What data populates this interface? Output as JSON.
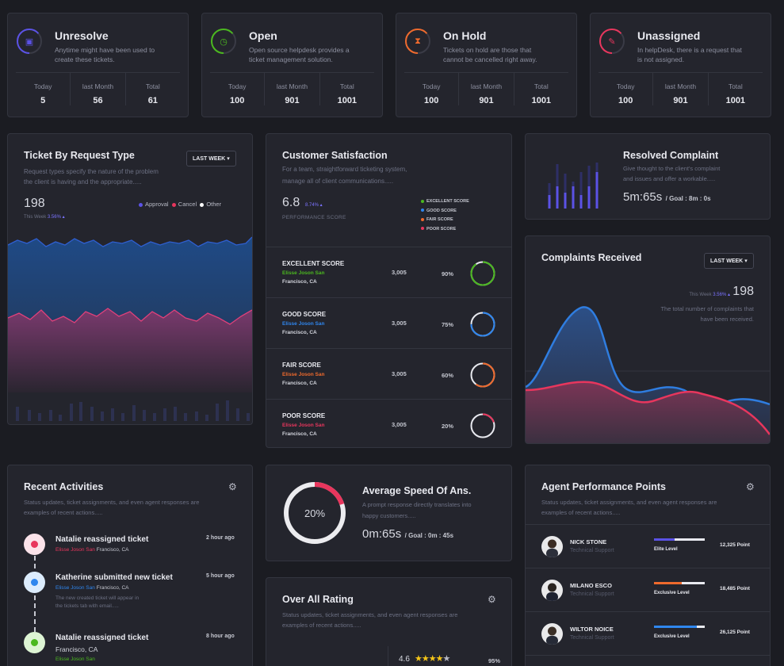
{
  "colors": {
    "purple": "#5b52e6",
    "green": "#4bb81f",
    "orange": "#ef6a2d",
    "red": "#e8365d",
    "blue": "#2f86ee"
  },
  "stat_cards": [
    {
      "title": "Unresolve",
      "desc1": "Anytime might have been used to",
      "desc2": "create these tickets.",
      "icon": "calendar-icon",
      "labels": [
        "Today",
        "last Month",
        "Total"
      ],
      "values": [
        "5",
        "56",
        "61"
      ]
    },
    {
      "title": "Open",
      "desc1": "Open source helpdesk provides a",
      "desc2": "ticket management solution.",
      "icon": "clock-icon",
      "labels": [
        "Today",
        "last Month",
        "Total"
      ],
      "values": [
        "100",
        "901",
        "1001"
      ]
    },
    {
      "title": "On Hold",
      "desc1": "Tickets on hold are those that",
      "desc2": "cannot be cancelled right away.",
      "icon": "hourglass-icon",
      "labels": [
        "Today",
        "last Month",
        "Total"
      ],
      "values": [
        "100",
        "901",
        "1001"
      ]
    },
    {
      "title": "Unassigned",
      "desc1": "In helpDesk, there is a request that",
      "desc2": "is not assigned.",
      "icon": "pencil-icon",
      "labels": [
        "Today",
        "last Month",
        "Total"
      ],
      "values": [
        "100",
        "901",
        "1001"
      ]
    }
  ],
  "ticket_request": {
    "title": "Ticket By Request Type",
    "desc1": "Request types specify the nature of the problem",
    "desc2": "the client is having and the appropriate.....",
    "dropdown": "LAST WEEK",
    "value": "198",
    "period": "This Week",
    "change": "3.56%",
    "legend": [
      "Approval",
      "Cancel",
      "Other"
    ]
  },
  "satisfaction": {
    "title": "Customer Satisfaction",
    "desc1": "For a team, straightforward ticketing system,",
    "desc2": "manage all of client communications.....",
    "score": "6.8",
    "change": "8.74%",
    "score_label": "PERFORMANCE SCORE",
    "legend": [
      "EXCELLENT SCORE",
      "GOOD SCORE",
      "FAIR SCORE",
      "POOR SCORE"
    ],
    "rows": [
      {
        "name": "EXCELLENT SCORE",
        "person": "Elisse Joson San",
        "location": "Francisco, CA",
        "count": "3,005",
        "percent": "90%",
        "fraction": 0.9,
        "color": "#4bb81f"
      },
      {
        "name": "GOOD SCORE",
        "person": "Elisse Joson San",
        "location": "Francisco, CA",
        "count": "3,005",
        "percent": "75%",
        "fraction": 0.75,
        "color": "#2f86ee"
      },
      {
        "name": "FAIR SCORE",
        "person": "Elisse Joson San",
        "location": "Francisco, CA",
        "count": "3,005",
        "percent": "60%",
        "fraction": 0.6,
        "color": "#ef6a2d"
      },
      {
        "name": "POOR SCORE",
        "person": "Elisse Joson San",
        "location": "Francisco, CA",
        "count": "3,005",
        "percent": "20%",
        "fraction": 0.2,
        "color": "#e8365d"
      }
    ]
  },
  "resolved": {
    "title": "Resolved Complaint",
    "desc1": "Give thought to the client's complaint",
    "desc2": "and issues and offer a workable.....",
    "time": "5m:65s",
    "goal": "/ Goal : 8m : 0s"
  },
  "complaints": {
    "title": "Complaints Received",
    "dropdown": "LAST WEEK",
    "period": "This Week",
    "change": "3.56%",
    "value": "198",
    "desc1": "The total number of complaints that",
    "desc2": "have been received."
  },
  "activities": {
    "title": "Recent Activities",
    "desc1": "Status updates, ticket assignments, and even agent responses are",
    "desc2": "examples of recent actions.....",
    "items": [
      {
        "title": "Natalie reassigned ticket",
        "person": "Elisse Joson San",
        "location": "Francisco, CA",
        "time": "2 hour ago"
      },
      {
        "title": "Katherine submitted new ticket",
        "person": "Elisse Joson San",
        "location": "Francisco, CA",
        "time": "5 hour ago",
        "note1": "The new created ticket will appear in",
        "note2": "the tickets tab with email....."
      },
      {
        "title": "Natalie reassigned ticket",
        "location": "Francisco, CA",
        "person": "Elisse Joson San",
        "time": "8 hour ago"
      }
    ]
  },
  "speed": {
    "title": "Average Speed Of Ans.",
    "desc1": "A prompt response directly translates into",
    "desc2": "happy customers.....",
    "percent": "20%",
    "fraction": 0.2,
    "time": "0m:65s",
    "goal": "/ Goal : 0m : 45s"
  },
  "rating": {
    "title": "Over All Rating",
    "desc1": "Status updates, ticket assignments, and even agent responses are",
    "desc2": "examples of recent actions.....",
    "value": "4.6",
    "stars": 4,
    "percent": "95%"
  },
  "agents": {
    "title": "Agent Performance Points",
    "desc1": "Status updates, ticket assignments, and even agent responses are",
    "desc2": "examples of recent actions.....",
    "rows": [
      {
        "name": "NICK STONE",
        "role": "Technical Support",
        "level": "Elite Level",
        "points": "12,325 Point",
        "progress": 0.4,
        "color": "#5b52e6"
      },
      {
        "name": "MILANO ESCO",
        "role": "Technical Support",
        "level": "Exclusive Level",
        "points": "18,485 Point",
        "progress": 0.55,
        "color": "#ef6a2d"
      },
      {
        "name": "WILTOR NOICE",
        "role": "Technical Support",
        "level": "Exclusive Level",
        "points": "26,125 Point",
        "progress": 0.85,
        "color": "#2f86ee"
      }
    ]
  }
}
